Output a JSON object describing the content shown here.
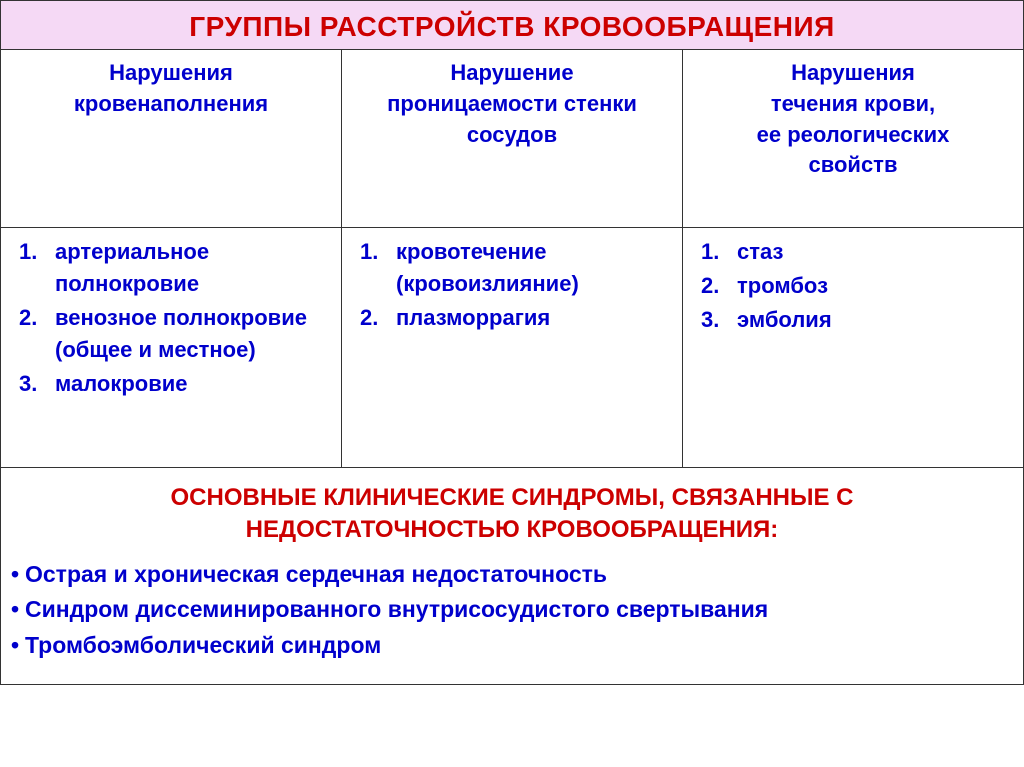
{
  "title": "ГРУППЫ РАССТРОЙСТВ КРОВООБРАЩЕНИЯ",
  "table": {
    "columns": [
      {
        "header_lines": [
          "Нарушения",
          "кровенаполнения"
        ]
      },
      {
        "header_lines": [
          "Нарушение",
          "проницаемости стенки",
          "сосудов"
        ]
      },
      {
        "header_lines": [
          "Нарушения",
          "течения крови,",
          "ее реологических",
          "свойств"
        ]
      }
    ],
    "rows": [
      [
        {
          "items": [
            "артериальное полнокровие",
            "венозное полнокровие (общее и местное)",
            "малокровие"
          ]
        },
        {
          "items": [
            "кровотечение (кровоизлияние)",
            "плазморрагия"
          ]
        },
        {
          "items": [
            "стаз",
            "тромбоз",
            "эмболия"
          ]
        }
      ]
    ]
  },
  "footer": {
    "title_lines": [
      "ОСНОВНЫЕ КЛИНИЧЕСКИЕ СИНДРОМЫ, СВЯЗАННЫЕ С",
      "НЕДОСТАТОЧНОСТЬЮ КРОВООБРАЩЕНИЯ:"
    ],
    "bullets": [
      "Острая  и хроническая  сердечная недостаточность",
      "Синдром диссеминированного внутрисосудистого свертывания",
      "Тромбоэмболический синдром"
    ]
  },
  "colors": {
    "title_bg": "#f5d9f5",
    "heading_red": "#cc0000",
    "text_blue": "#0000cc",
    "border": "#333333"
  },
  "typography": {
    "title_fontsize": 28,
    "header_fontsize": 22,
    "cell_fontsize": 22,
    "footer_title_fontsize": 24,
    "footer_list_fontsize": 23
  }
}
